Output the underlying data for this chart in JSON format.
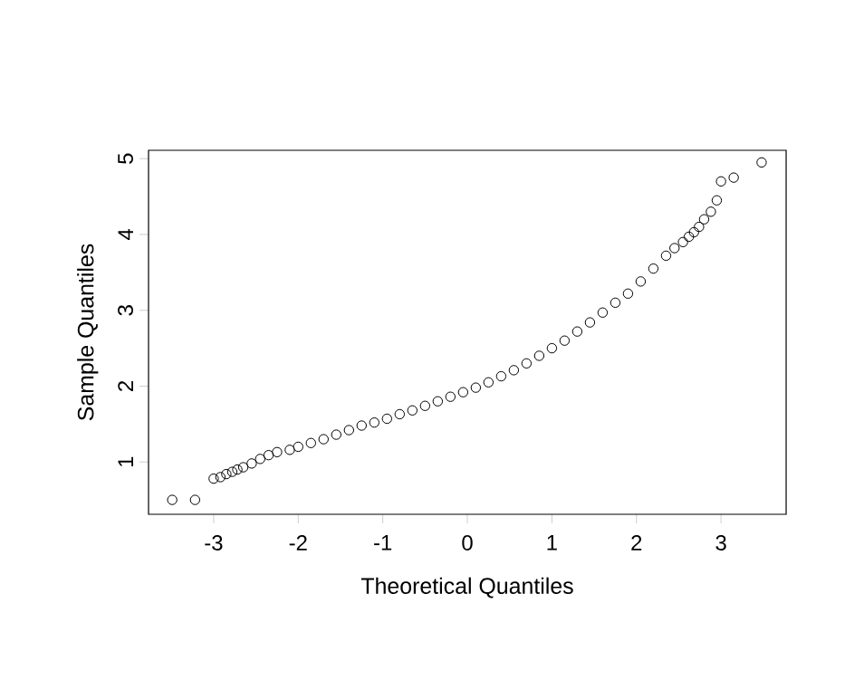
{
  "chart_data": {
    "type": "scatter",
    "xlabel": "Theoretical Quantiles",
    "ylabel": "Sample Quantiles",
    "x": [
      -3.49,
      -3.22,
      -3.0,
      -2.92,
      -2.85,
      -2.78,
      -2.72,
      -2.65,
      -2.55,
      -2.45,
      -2.35,
      -2.25,
      -2.1,
      -2.0,
      -1.85,
      -1.7,
      -1.55,
      -1.4,
      -1.25,
      -1.1,
      -0.95,
      -0.8,
      -0.65,
      -0.5,
      -0.35,
      -0.2,
      -0.05,
      0.1,
      0.25,
      0.4,
      0.55,
      0.7,
      0.85,
      1.0,
      1.15,
      1.3,
      1.45,
      1.6,
      1.75,
      1.9,
      2.05,
      2.2,
      2.35,
      2.45,
      2.55,
      2.62,
      2.68,
      2.74,
      2.8,
      2.88,
      2.95,
      3.0,
      3.15,
      3.48
    ],
    "values": [
      0.5,
      0.5,
      0.78,
      0.8,
      0.84,
      0.87,
      0.9,
      0.93,
      0.98,
      1.04,
      1.09,
      1.13,
      1.16,
      1.2,
      1.25,
      1.3,
      1.36,
      1.42,
      1.48,
      1.52,
      1.57,
      1.63,
      1.68,
      1.74,
      1.8,
      1.86,
      1.92,
      1.98,
      2.05,
      2.13,
      2.21,
      2.3,
      2.4,
      2.5,
      2.6,
      2.72,
      2.84,
      2.97,
      3.1,
      3.22,
      3.38,
      3.55,
      3.72,
      3.82,
      3.9,
      3.97,
      4.03,
      4.1,
      4.2,
      4.3,
      4.45,
      4.7,
      4.75,
      4.95
    ],
    "color": "#000000",
    "marker": "circle",
    "xlim": [
      -3.77,
      3.77
    ],
    "ylim": [
      0.31,
      5.11
    ],
    "xticks": [
      -3,
      -2,
      -1,
      0,
      1,
      2,
      3
    ],
    "yticks": [
      1,
      2,
      3,
      4,
      5
    ]
  }
}
